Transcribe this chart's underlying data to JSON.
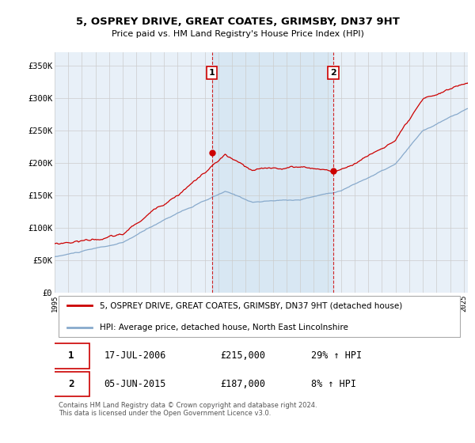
{
  "title": "5, OSPREY DRIVE, GREAT COATES, GRIMSBY, DN37 9HT",
  "subtitle": "Price paid vs. HM Land Registry's House Price Index (HPI)",
  "ylabel_ticks": [
    "£0",
    "£50K",
    "£100K",
    "£150K",
    "£200K",
    "£250K",
    "£300K",
    "£350K"
  ],
  "ytick_values": [
    0,
    50000,
    100000,
    150000,
    200000,
    250000,
    300000,
    350000
  ],
  "ylim": [
    0,
    370000
  ],
  "xlim_start": 1995.0,
  "xlim_end": 2025.3,
  "red_color": "#cc0000",
  "blue_color": "#88aacc",
  "shade_color": "#ddeeff",
  "marker1_x": 2006.54,
  "marker1_y": 215000,
  "marker2_x": 2015.43,
  "marker2_y": 187000,
  "annotation1_label": "1",
  "annotation2_label": "2",
  "legend_line1": "5, OSPREY DRIVE, GREAT COATES, GRIMSBY, DN37 9HT (detached house)",
  "legend_line2": "HPI: Average price, detached house, North East Lincolnshire",
  "table_row1": [
    "1",
    "17-JUL-2006",
    "£215,000",
    "29% ↑ HPI"
  ],
  "table_row2": [
    "2",
    "05-JUN-2015",
    "£187,000",
    "8% ↑ HPI"
  ],
  "footer": "Contains HM Land Registry data © Crown copyright and database right 2024.\nThis data is licensed under the Open Government Licence v3.0.",
  "bg_color": "#e8f0f8",
  "grid_color": "#cccccc",
  "dashed_line_color": "#cc0000",
  "annotation_box_color": "#cc0000"
}
